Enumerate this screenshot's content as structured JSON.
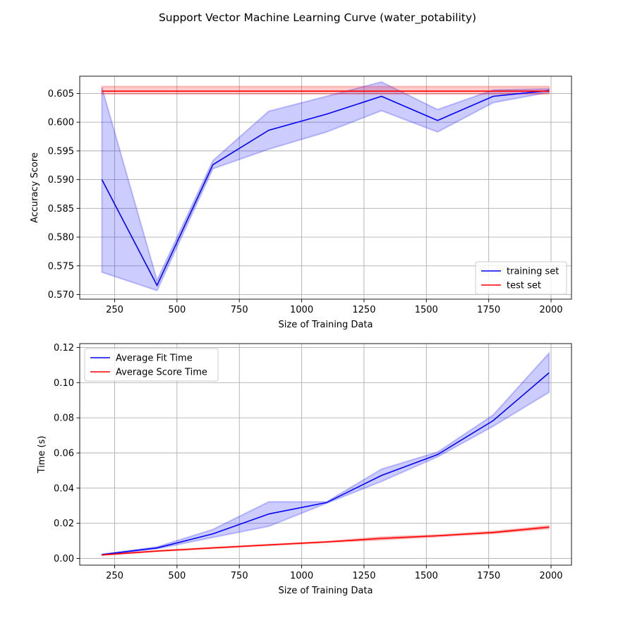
{
  "figure": {
    "suptitle": "Support Vector Machine Learning Curve (water_potability)"
  },
  "chart_data": [
    {
      "type": "line",
      "title": "",
      "xlabel": "Size of Training Data",
      "ylabel": "Accuracy Score",
      "xlim": [
        110,
        2082
      ],
      "ylim": [
        0.5692,
        0.608
      ],
      "grid": true,
      "legend_position": "lower-right",
      "x_ticks": [
        250,
        500,
        750,
        1000,
        1250,
        1500,
        1750,
        2000
      ],
      "y_ticks": [
        0.57,
        0.575,
        0.58,
        0.585,
        0.59,
        0.595,
        0.6,
        0.605
      ],
      "x_tick_labels": [
        "250",
        "500",
        "750",
        "1000",
        "1250",
        "1500",
        "1750",
        "2000"
      ],
      "y_tick_labels": [
        "0.570",
        "0.575",
        "0.580",
        "0.585",
        "0.590",
        "0.595",
        "0.600",
        "0.605"
      ],
      "x": [
        199,
        420,
        644,
        868,
        1100,
        1320,
        1545,
        1768,
        1992
      ],
      "series": [
        {
          "name": "training set",
          "color": "#0000ff",
          "values": [
            0.59,
            0.5716,
            0.5926,
            0.5986,
            0.6014,
            0.6045,
            0.6003,
            0.6045,
            0.6055
          ],
          "band_lower": [
            0.5739,
            0.5707,
            0.5919,
            0.5953,
            0.5983,
            0.602,
            0.5983,
            0.6034,
            0.6052
          ],
          "band_upper": [
            0.606,
            0.5725,
            0.5933,
            0.6019,
            0.6045,
            0.607,
            0.6022,
            0.6056,
            0.6058
          ]
        },
        {
          "name": "test set",
          "color": "#ff0000",
          "values": [
            0.6054,
            0.6054,
            0.6054,
            0.6054,
            0.6054,
            0.6054,
            0.6054,
            0.6054,
            0.6054
          ],
          "band_lower": [
            0.6049,
            0.6049,
            0.6049,
            0.6049,
            0.6049,
            0.6049,
            0.6049,
            0.6049,
            0.6049
          ],
          "band_upper": [
            0.6062,
            0.6062,
            0.6062,
            0.6062,
            0.6062,
            0.6062,
            0.6062,
            0.6062,
            0.6062
          ]
        }
      ]
    },
    {
      "type": "line",
      "title": "",
      "xlabel": "Size of Training Data",
      "ylabel": "Time (s)",
      "xlim": [
        110,
        2082
      ],
      "ylim": [
        -0.0038,
        0.1222
      ],
      "grid": true,
      "legend_position": "top-left",
      "x_ticks": [
        250,
        500,
        750,
        1000,
        1250,
        1500,
        1750,
        2000
      ],
      "y_ticks": [
        0.0,
        0.02,
        0.04,
        0.06,
        0.08,
        0.1,
        0.12
      ],
      "x_tick_labels": [
        "250",
        "500",
        "750",
        "1000",
        "1250",
        "1500",
        "1750",
        "2000"
      ],
      "y_tick_labels": [
        "0.00",
        "0.02",
        "0.04",
        "0.06",
        "0.08",
        "0.10",
        "0.12"
      ],
      "x": [
        199,
        420,
        644,
        868,
        1100,
        1320,
        1545,
        1768,
        1992
      ],
      "series": [
        {
          "name": "Average Fit Time",
          "color": "#0000ff",
          "values": [
            0.0022,
            0.006,
            0.014,
            0.0253,
            0.0318,
            0.0472,
            0.0591,
            0.0784,
            0.1056
          ],
          "band_lower": [
            0.002,
            0.0055,
            0.012,
            0.0183,
            0.0314,
            0.0438,
            0.0578,
            0.0752,
            0.0945
          ],
          "band_upper": [
            0.0024,
            0.0066,
            0.0165,
            0.0322,
            0.0322,
            0.0508,
            0.0605,
            0.0816,
            0.1168
          ]
        },
        {
          "name": "Average Score Time",
          "color": "#ff0000",
          "values": [
            0.002,
            0.0042,
            0.006,
            0.0077,
            0.0094,
            0.0114,
            0.0129,
            0.0148,
            0.0178
          ],
          "band_lower": [
            0.0018,
            0.004,
            0.0057,
            0.0074,
            0.0091,
            0.0106,
            0.0124,
            0.0142,
            0.017
          ],
          "band_upper": [
            0.0022,
            0.0045,
            0.0063,
            0.008,
            0.0097,
            0.0122,
            0.0134,
            0.0154,
            0.0186
          ]
        }
      ]
    }
  ]
}
